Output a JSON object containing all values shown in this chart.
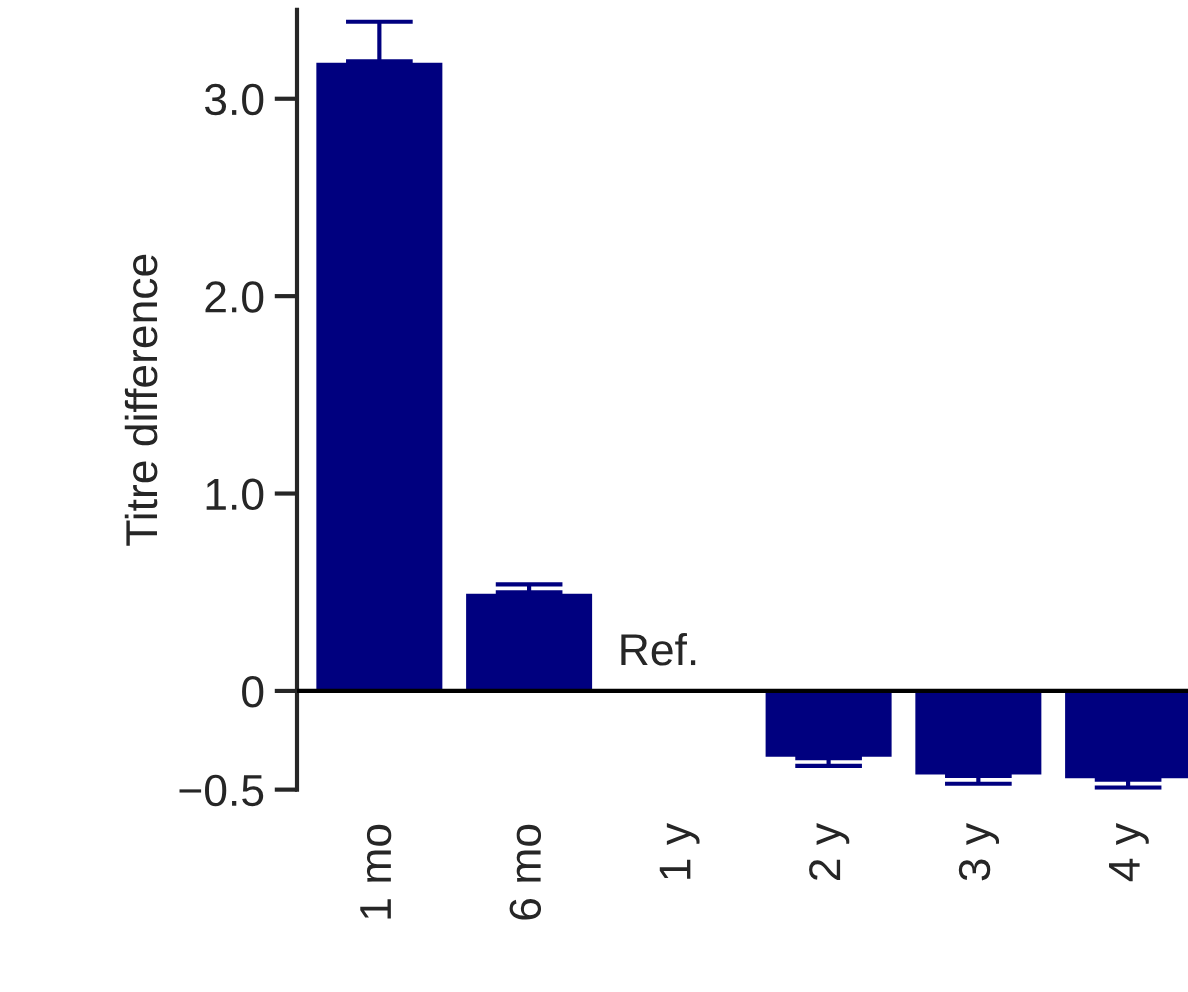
{
  "chart_data": {
    "type": "bar",
    "ylabel": "Titre difference",
    "categories": [
      "1 mo",
      "6 mo",
      "1 y",
      "2 y",
      "3 y",
      "4 y"
    ],
    "values": [
      3.19,
      0.5,
      null,
      -0.34,
      -0.43,
      -0.45
    ],
    "errors": [
      [
        3.19,
        3.39
      ],
      [
        0.5,
        0.54
      ],
      null,
      [
        -0.38,
        -0.34
      ],
      [
        -0.47,
        -0.43
      ],
      [
        -0.49,
        -0.45
      ]
    ],
    "color": "#00007f",
    "ylim": [
      -0.5,
      3.45
    ],
    "yticks": [
      {
        "value": -0.5,
        "label": "−0.5"
      },
      0,
      {
        "value": 1,
        "label": "1.0"
      },
      {
        "value": 2,
        "label": "2.0"
      },
      {
        "value": 3,
        "label": "3.0"
      }
    ],
    "ref_lines": [
      {
        "axis": "y",
        "value": 0,
        "color": "#000000"
      }
    ],
    "annotations": [
      {
        "text": "Ref.",
        "x": "1 y",
        "y": 0
      }
    ],
    "grid": false,
    "legend": false
  }
}
